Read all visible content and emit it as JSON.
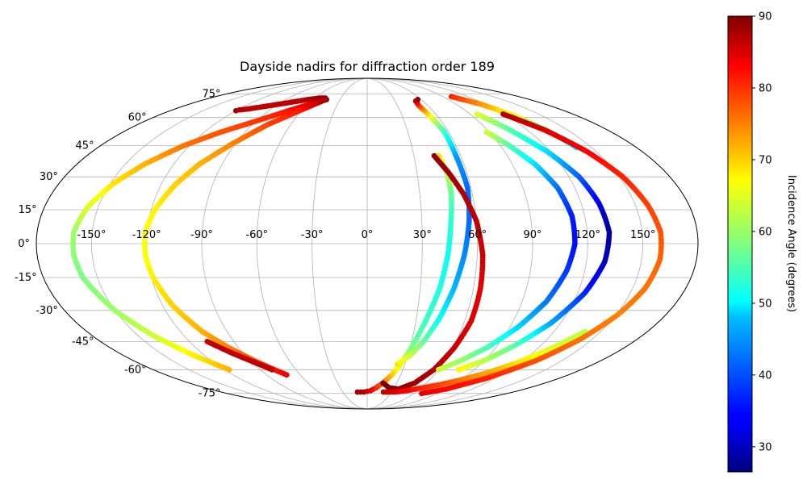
{
  "chart_data": {
    "type": "scatter",
    "projection": "mollweide",
    "title": "Dayside nadirs for diffraction order 189",
    "grid": true,
    "longitude_ticks": [
      -150,
      -120,
      -90,
      -60,
      -30,
      0,
      30,
      60,
      90,
      120,
      150
    ],
    "longitude_tick_labels": [
      "-150°",
      "-120°",
      "-90°",
      "-60°",
      "-30°",
      "0°",
      "30°",
      "60°",
      "90°",
      "120°",
      "150°"
    ],
    "latitude_ticks": [
      75,
      60,
      45,
      30,
      15,
      0,
      -15,
      -30,
      -45,
      -60,
      -75
    ],
    "latitude_tick_labels": [
      "75°",
      "60°",
      "45°",
      "30°",
      "15°",
      "0°",
      "-15°",
      "-30°",
      "-45°",
      "-60°",
      "-75°"
    ],
    "colorbar": {
      "label": "Incidence Angle (degrees)",
      "range": [
        26.5,
        90
      ],
      "ticks": [
        30,
        40,
        50,
        60,
        70,
        80,
        90
      ],
      "tick_labels": [
        "30",
        "40",
        "50",
        "60",
        "70",
        "80",
        "90"
      ],
      "colormap": "jet",
      "position": "right"
    },
    "series": [
      {
        "points": [
          {
            "lon": -120,
            "lat": 64,
            "inc": 88
          },
          {
            "lon": -118,
            "lat": 64.5,
            "inc": 87
          },
          {
            "lon": -112,
            "lat": 65,
            "inc": 86
          },
          {
            "lon": -74,
            "lat": 70,
            "inc": 86
          },
          {
            "lon": -66,
            "lat": 71,
            "inc": 87
          },
          {
            "lon": -54,
            "lat": 72,
            "inc": 88
          },
          {
            "lon": -48,
            "lat": 72,
            "inc": 89
          }
        ]
      },
      {
        "points": [
          {
            "lon": -45,
            "lat": 71,
            "inc": 88
          },
          {
            "lon": -58,
            "lat": 68,
            "inc": 84
          },
          {
            "lon": -72,
            "lat": 64,
            "inc": 81
          },
          {
            "lon": -90,
            "lat": 58,
            "inc": 79
          },
          {
            "lon": -108,
            "lat": 52,
            "inc": 77
          },
          {
            "lon": -124,
            "lat": 45,
            "inc": 75
          },
          {
            "lon": -138,
            "lat": 36,
            "inc": 71
          },
          {
            "lon": -148,
            "lat": 27,
            "inc": 68
          },
          {
            "lon": -156,
            "lat": 16,
            "inc": 64
          },
          {
            "lon": -160,
            "lat": 5,
            "inc": 60
          },
          {
            "lon": -160,
            "lat": -5,
            "inc": 59
          },
          {
            "lon": -158,
            "lat": -15,
            "inc": 58
          },
          {
            "lon": -150,
            "lat": -30,
            "inc": 60
          },
          {
            "lon": -140,
            "lat": -42,
            "inc": 63
          },
          {
            "lon": -128,
            "lat": -52,
            "inc": 67
          },
          {
            "lon": -116,
            "lat": -60,
            "inc": 71
          }
        ]
      },
      {
        "points": [
          {
            "lon": -46,
            "lat": 71,
            "inc": 88
          },
          {
            "lon": -62,
            "lat": 64,
            "inc": 81
          },
          {
            "lon": -78,
            "lat": 56,
            "inc": 78
          },
          {
            "lon": -92,
            "lat": 46,
            "inc": 74
          },
          {
            "lon": -104,
            "lat": 36,
            "inc": 71
          },
          {
            "lon": -112,
            "lat": 26,
            "inc": 69
          },
          {
            "lon": -118,
            "lat": 15,
            "inc": 67
          },
          {
            "lon": -121,
            "lat": 5,
            "inc": 66
          },
          {
            "lon": -121,
            "lat": -5,
            "inc": 66
          },
          {
            "lon": -119,
            "lat": -15,
            "inc": 67
          },
          {
            "lon": -114,
            "lat": -28,
            "inc": 69
          },
          {
            "lon": -106,
            "lat": -40,
            "inc": 71
          },
          {
            "lon": -97,
            "lat": -48,
            "inc": 74
          },
          {
            "lon": -87,
            "lat": -55,
            "inc": 78
          },
          {
            "lon": -78,
            "lat": -60,
            "inc": 81
          },
          {
            "lon": -72,
            "lat": -63,
            "inc": 83
          }
        ]
      },
      {
        "points": [
          {
            "lon": -108,
            "lat": -45,
            "inc": 86
          },
          {
            "lon": -98,
            "lat": -51,
            "inc": 86
          },
          {
            "lon": -88,
            "lat": -56,
            "inc": 86
          },
          {
            "lon": -80,
            "lat": -60,
            "inc": 86
          }
        ]
      },
      {
        "points": [
          {
            "lon": -12,
            "lat": -74,
            "inc": 88
          },
          {
            "lon": -4,
            "lat": -74,
            "inc": 87
          },
          {
            "lon": 4,
            "lat": -73,
            "inc": 84
          },
          {
            "lon": 10,
            "lat": -71,
            "inc": 80
          },
          {
            "lon": 16,
            "lat": -68,
            "inc": 76
          },
          {
            "lon": 22,
            "lat": -63,
            "inc": 70
          },
          {
            "lon": 26,
            "lat": -58,
            "inc": 65
          },
          {
            "lon": 31,
            "lat": -48,
            "inc": 58
          },
          {
            "lon": 36,
            "lat": -35,
            "inc": 54
          },
          {
            "lon": 41,
            "lat": -20,
            "inc": 52
          },
          {
            "lon": 44,
            "lat": -5,
            "inc": 51
          },
          {
            "lon": 46,
            "lat": 10,
            "inc": 53
          },
          {
            "lon": 48,
            "lat": 22,
            "inc": 56
          },
          {
            "lon": 48,
            "lat": 32,
            "inc": 62
          },
          {
            "lon": 46,
            "lat": 40,
            "inc": 68
          }
        ]
      },
      {
        "points": [
          {
            "lon": 24,
            "lat": -57,
            "inc": 68
          },
          {
            "lon": 32,
            "lat": -52,
            "inc": 63
          },
          {
            "lon": 38,
            "lat": -45,
            "inc": 57
          },
          {
            "lon": 44,
            "lat": -34,
            "inc": 51
          },
          {
            "lon": 49,
            "lat": -20,
            "inc": 46
          },
          {
            "lon": 53,
            "lat": -5,
            "inc": 43
          },
          {
            "lon": 56,
            "lat": 10,
            "inc": 41
          },
          {
            "lon": 58,
            "lat": 25,
            "inc": 41
          },
          {
            "lon": 57,
            "lat": 40,
            "inc": 44
          },
          {
            "lon": 57,
            "lat": 52,
            "inc": 53
          },
          {
            "lon": 54,
            "lat": 60,
            "inc": 64
          },
          {
            "lon": 51,
            "lat": 67,
            "inc": 78
          },
          {
            "lon": 52,
            "lat": 70,
            "inc": 86
          },
          {
            "lon": 56,
            "lat": 71,
            "inc": 89
          }
        ]
      },
      {
        "points": [
          {
            "lon": 43,
            "lat": 40,
            "inc": 89
          },
          {
            "lon": 49,
            "lat": 32,
            "inc": 88
          },
          {
            "lon": 55,
            "lat": 22,
            "inc": 87
          },
          {
            "lon": 60,
            "lat": 10,
            "inc": 86
          },
          {
            "lon": 63,
            "lat": -5,
            "inc": 85
          },
          {
            "lon": 64,
            "lat": -20,
            "inc": 84
          },
          {
            "lon": 64,
            "lat": -35,
            "inc": 84
          },
          {
            "lon": 61,
            "lat": -48,
            "inc": 85
          },
          {
            "lon": 56,
            "lat": -60,
            "inc": 87
          },
          {
            "lon": 48,
            "lat": -68,
            "inc": 88
          },
          {
            "lon": 36,
            "lat": -72,
            "inc": 89
          },
          {
            "lon": 24,
            "lat": -71,
            "inc": 90
          },
          {
            "lon": 16,
            "lat": -68,
            "inc": 90
          }
        ]
      },
      {
        "points": [
          {
            "lon": 20,
            "lat": -74,
            "inc": 86
          },
          {
            "lon": 34,
            "lat": -74,
            "inc": 84
          },
          {
            "lon": 48,
            "lat": -73,
            "inc": 82
          },
          {
            "lon": 62,
            "lat": -71,
            "inc": 80
          },
          {
            "lon": 76,
            "lat": -69,
            "inc": 78
          },
          {
            "lon": 90,
            "lat": -66,
            "inc": 75
          },
          {
            "lon": 104,
            "lat": -62,
            "inc": 72
          },
          {
            "lon": 118,
            "lat": -56,
            "inc": 68
          },
          {
            "lon": 130,
            "lat": -48,
            "inc": 64
          },
          {
            "lon": 140,
            "lat": -40,
            "inc": 62
          }
        ]
      },
      {
        "points": [
          {
            "lon": 60,
            "lat": -60,
            "inc": 63
          },
          {
            "lon": 72,
            "lat": -55,
            "inc": 60
          },
          {
            "lon": 84,
            "lat": -48,
            "inc": 55
          },
          {
            "lon": 95,
            "lat": -38,
            "inc": 48
          },
          {
            "lon": 104,
            "lat": -26,
            "inc": 42
          },
          {
            "lon": 110,
            "lat": -12,
            "inc": 38
          },
          {
            "lon": 113,
            "lat": 0,
            "inc": 35
          },
          {
            "lon": 113,
            "lat": 12,
            "inc": 36
          },
          {
            "lon": 110,
            "lat": 25,
            "inc": 41
          },
          {
            "lon": 104,
            "lat": 36,
            "inc": 48
          },
          {
            "lon": 96,
            "lat": 45,
            "inc": 55
          },
          {
            "lon": 88,
            "lat": 52,
            "inc": 63
          }
        ]
      },
      {
        "points": [
          {
            "lon": 77,
            "lat": -60,
            "inc": 67
          },
          {
            "lon": 90,
            "lat": -55,
            "inc": 62
          },
          {
            "lon": 102,
            "lat": -47,
            "inc": 56
          },
          {
            "lon": 114,
            "lat": -36,
            "inc": 45
          },
          {
            "lon": 124,
            "lat": -22,
            "inc": 37
          },
          {
            "lon": 130,
            "lat": -8,
            "inc": 31
          },
          {
            "lon": 132,
            "lat": 5,
            "inc": 28
          },
          {
            "lon": 130,
            "lat": 18,
            "inc": 33
          },
          {
            "lon": 126,
            "lat": 30,
            "inc": 40
          },
          {
            "lon": 118,
            "lat": 42,
            "inc": 48
          },
          {
            "lon": 106,
            "lat": 54,
            "inc": 56
          },
          {
            "lon": 96,
            "lat": 62,
            "inc": 64
          }
        ]
      },
      {
        "points": [
          {
            "lon": 100,
            "lat": 73,
            "inc": 80
          },
          {
            "lon": 115,
            "lat": 68,
            "inc": 73
          },
          {
            "lon": 126,
            "lat": 61,
            "inc": 65
          },
          {
            "lon": 134,
            "lat": 53,
            "inc": 56
          },
          {
            "lon": 140,
            "lat": 44,
            "inc": 48
          }
        ]
      },
      {
        "points": [
          {
            "lon": 119,
            "lat": 62,
            "inc": 87
          },
          {
            "lon": 133,
            "lat": 53,
            "inc": 84
          },
          {
            "lon": 144,
            "lat": 42,
            "inc": 82
          },
          {
            "lon": 152,
            "lat": 30,
            "inc": 80
          },
          {
            "lon": 157,
            "lat": 17,
            "inc": 78
          },
          {
            "lon": 160,
            "lat": 5,
            "inc": 77
          },
          {
            "lon": 160,
            "lat": -7,
            "inc": 76
          },
          {
            "lon": 157,
            "lat": -20,
            "inc": 75
          },
          {
            "lon": 151,
            "lat": -32,
            "inc": 74
          },
          {
            "lon": 142,
            "lat": -44,
            "inc": 75
          },
          {
            "lon": 130,
            "lat": -55,
            "inc": 77
          },
          {
            "lon": 112,
            "lat": -65,
            "inc": 80
          },
          {
            "lon": 90,
            "lat": -72,
            "inc": 82
          },
          {
            "lon": 70,
            "lat": -75,
            "inc": 84
          }
        ]
      }
    ]
  }
}
